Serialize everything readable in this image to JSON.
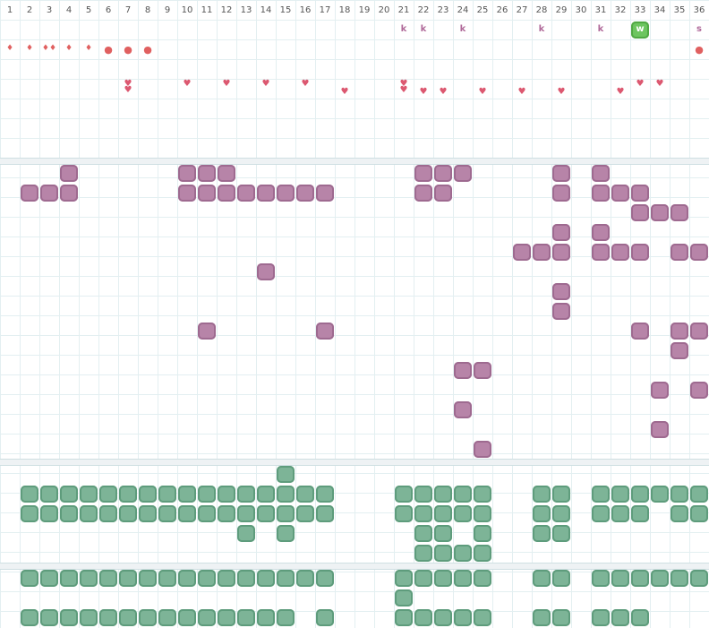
{
  "days": [
    "1",
    "2",
    "3",
    "4",
    "5",
    "6",
    "7",
    "8",
    "9",
    "10",
    "11",
    "12",
    "13",
    "14",
    "15",
    "16",
    "17",
    "18",
    "19",
    "20",
    "21",
    "22",
    "23",
    "24",
    "25",
    "26",
    "27",
    "28",
    "29",
    "30",
    "31",
    "32",
    "33",
    "34",
    "35",
    "36"
  ],
  "markers": {
    "letters": [
      {
        "day": 21,
        "text": "k"
      },
      {
        "day": 22,
        "text": "k"
      },
      {
        "day": 24,
        "text": "k"
      },
      {
        "day": 28,
        "text": "k"
      },
      {
        "day": 31,
        "text": "k"
      },
      {
        "day": 36,
        "text": "s"
      }
    ],
    "badge": {
      "day": 33,
      "text": "w"
    }
  },
  "row_drops": [
    {
      "day": 1,
      "glyph": "drop"
    },
    {
      "day": 2,
      "glyph": "drop"
    },
    {
      "day": 3,
      "glyph": "drop2"
    },
    {
      "day": 4,
      "glyph": "drop"
    },
    {
      "day": 5,
      "glyph": "drop"
    },
    {
      "day": 6,
      "glyph": "dot"
    },
    {
      "day": 7,
      "glyph": "dot"
    },
    {
      "day": 8,
      "glyph": "dot"
    },
    {
      "day": 36,
      "glyph": "dot"
    }
  ],
  "row_hearts_a": [
    7,
    10,
    12,
    14,
    16,
    21,
    33,
    34
  ],
  "row_hearts_b": [
    7,
    18,
    21,
    22,
    23,
    25,
    27,
    29,
    32
  ],
  "purple_blocks": {
    "r1": [
      4,
      10,
      11,
      12,
      22,
      23,
      24,
      29,
      31
    ],
    "r2": [
      2,
      3,
      4,
      10,
      11,
      12,
      13,
      14,
      15,
      16,
      17,
      22,
      23,
      29,
      31,
      32,
      33
    ],
    "r3": [
      33,
      34,
      35
    ],
    "r4": [
      29,
      31
    ],
    "r5": [
      27,
      28,
      29,
      31,
      32,
      33,
      35,
      36
    ],
    "r6": [
      14
    ],
    "r7": [
      29
    ],
    "r8": [
      29
    ],
    "r9": [
      11,
      17,
      33,
      35,
      36
    ],
    "r10": [
      35
    ],
    "r11": [
      24,
      25
    ],
    "r12": [
      34,
      36
    ],
    "r13": [
      24
    ],
    "r14": [
      34
    ],
    "r15": [
      25
    ]
  },
  "green_blocks_a": {
    "r0": [
      15
    ],
    "r1": [
      2,
      3,
      4,
      5,
      6,
      7,
      8,
      9,
      10,
      11,
      12,
      13,
      14,
      15,
      16,
      17,
      21,
      22,
      23,
      24,
      25,
      28,
      29,
      31,
      32,
      33,
      34,
      35,
      36
    ],
    "r2": [
      2,
      3,
      4,
      5,
      6,
      7,
      8,
      9,
      10,
      11,
      12,
      13,
      14,
      15,
      16,
      17,
      21,
      22,
      23,
      24,
      25,
      28,
      29,
      31,
      32,
      33,
      35,
      36
    ],
    "r3": [
      13,
      15,
      22,
      23,
      25,
      28,
      29
    ],
    "r4": [
      22,
      23,
      24,
      25
    ]
  },
  "green_blocks_b": {
    "r1": [
      2,
      3,
      4,
      5,
      6,
      7,
      8,
      9,
      10,
      11,
      12,
      13,
      14,
      15,
      16,
      17,
      21,
      22,
      23,
      24,
      25,
      28,
      29,
      31,
      32,
      33,
      34,
      35,
      36
    ],
    "r2": [
      21
    ],
    "r3": [
      2,
      3,
      4,
      5,
      6,
      7,
      8,
      9,
      10,
      11,
      12,
      13,
      14,
      15,
      17,
      21,
      22,
      23,
      24,
      25,
      28,
      29,
      31,
      32,
      33
    ]
  }
}
